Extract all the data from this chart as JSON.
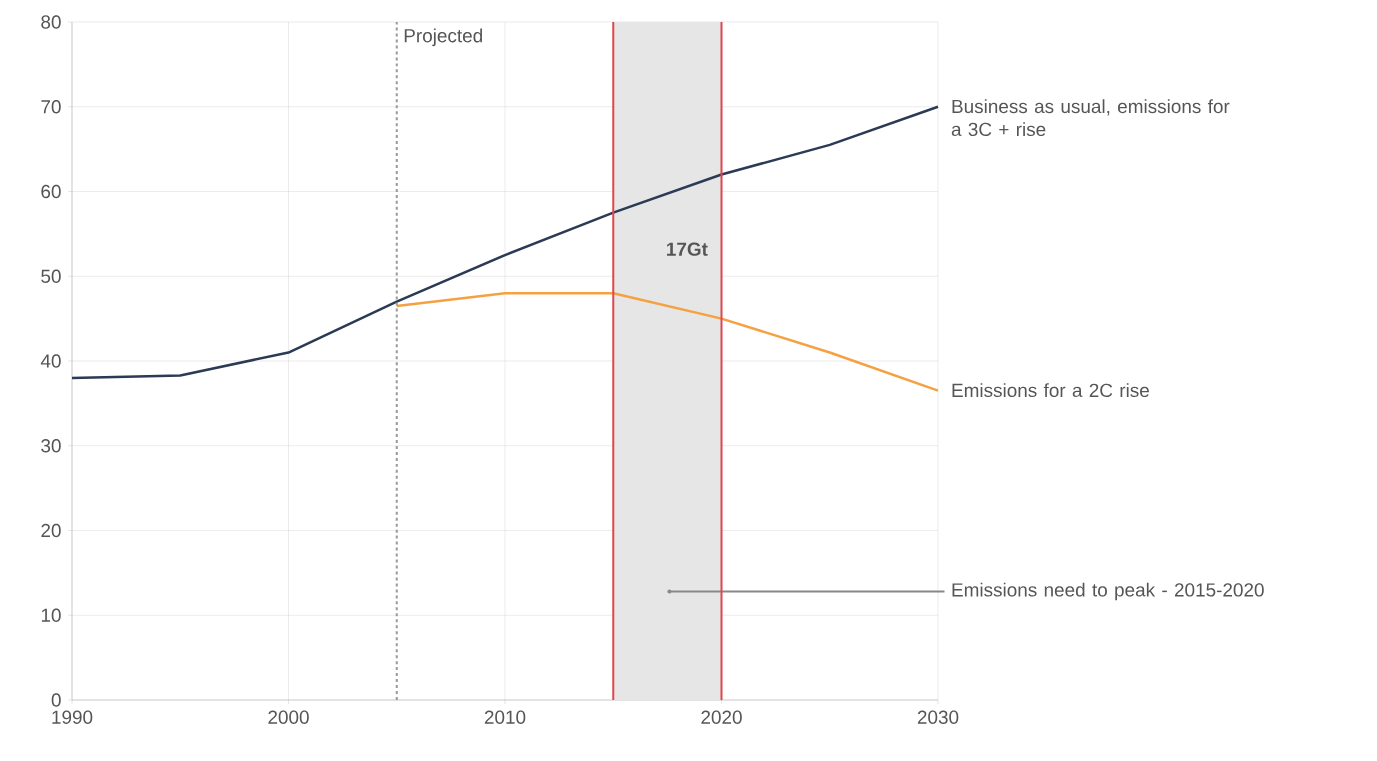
{
  "chart_data": {
    "type": "line",
    "x": [
      1990,
      1995,
      2000,
      2005,
      2010,
      2015,
      2020,
      2025,
      2030
    ],
    "series": [
      {
        "name": "Business as usual, emissions for a 3C + rise",
        "color": "#2b3a55",
        "values": [
          38,
          38.3,
          41,
          47,
          52.5,
          57.5,
          62,
          65.5,
          70
        ]
      },
      {
        "name": "Emissions for a 2C rise",
        "color": "#f5a142",
        "x": [
          2005,
          2010,
          2015,
          2020,
          2025,
          2030
        ],
        "values": [
          46.5,
          48,
          48,
          45,
          41,
          36.5
        ]
      }
    ],
    "xlim": [
      1990,
      2030
    ],
    "ylim": [
      0,
      80
    ],
    "xticks": [
      1990,
      2000,
      2010,
      2020,
      2030
    ],
    "yticks": [
      0,
      10,
      20,
      30,
      40,
      50,
      60,
      70,
      80
    ],
    "grid": true,
    "marker": "none",
    "line_style": "solid",
    "ref_lines": [
      {
        "axis": "x",
        "value": 2005,
        "label": "Projected",
        "color": "#999999",
        "line_style": "dashed"
      },
      {
        "axis": "x",
        "value": 2015,
        "color": "#e0474c"
      },
      {
        "axis": "x",
        "value": 2020,
        "color": "#e0474c"
      }
    ],
    "bands": [
      {
        "axis": "x",
        "from": 2015,
        "to": 2020,
        "label": "Emissions need to peak - 2015-2020",
        "color": "#e6e6e6"
      }
    ],
    "annotations": [
      "17Gt"
    ]
  }
}
